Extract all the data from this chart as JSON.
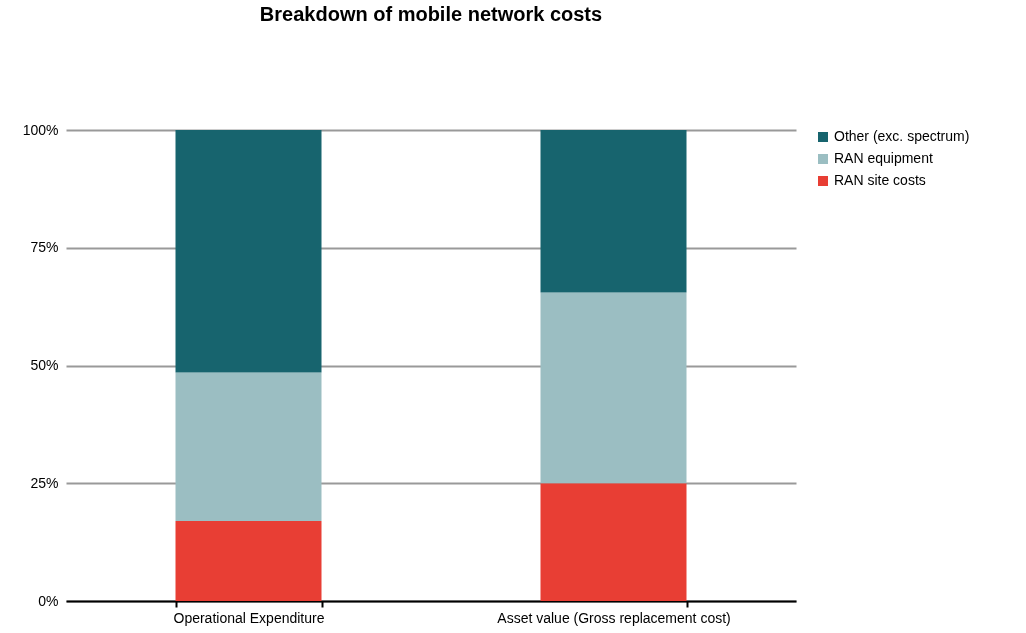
{
  "chart_data": {
    "type": "bar",
    "title": "Breakdown of mobile network costs",
    "categories": [
      "Operational Expenditure",
      "Asset value (Gross replacement cost)"
    ],
    "stacked": true,
    "series": [
      {
        "name": "RAN site costs",
        "color": "#e83e34",
        "values": [
          17,
          25
        ]
      },
      {
        "name": "RAN equipment",
        "color": "#9bbec2",
        "values": [
          31.5,
          40.5
        ]
      },
      {
        "name": "Other (exc. spectrum)",
        "color": "#17646e",
        "values": [
          51.5,
          34.5
        ]
      }
    ],
    "ylim": [
      0,
      100
    ],
    "yticks": [
      {
        "value": 0,
        "label": "0%"
      },
      {
        "value": 25,
        "label": "25%"
      },
      {
        "value": 50,
        "label": "50%"
      },
      {
        "value": 75,
        "label": "75%"
      },
      {
        "value": 100,
        "label": "100%"
      }
    ],
    "grid": "y",
    "legend": "right"
  }
}
